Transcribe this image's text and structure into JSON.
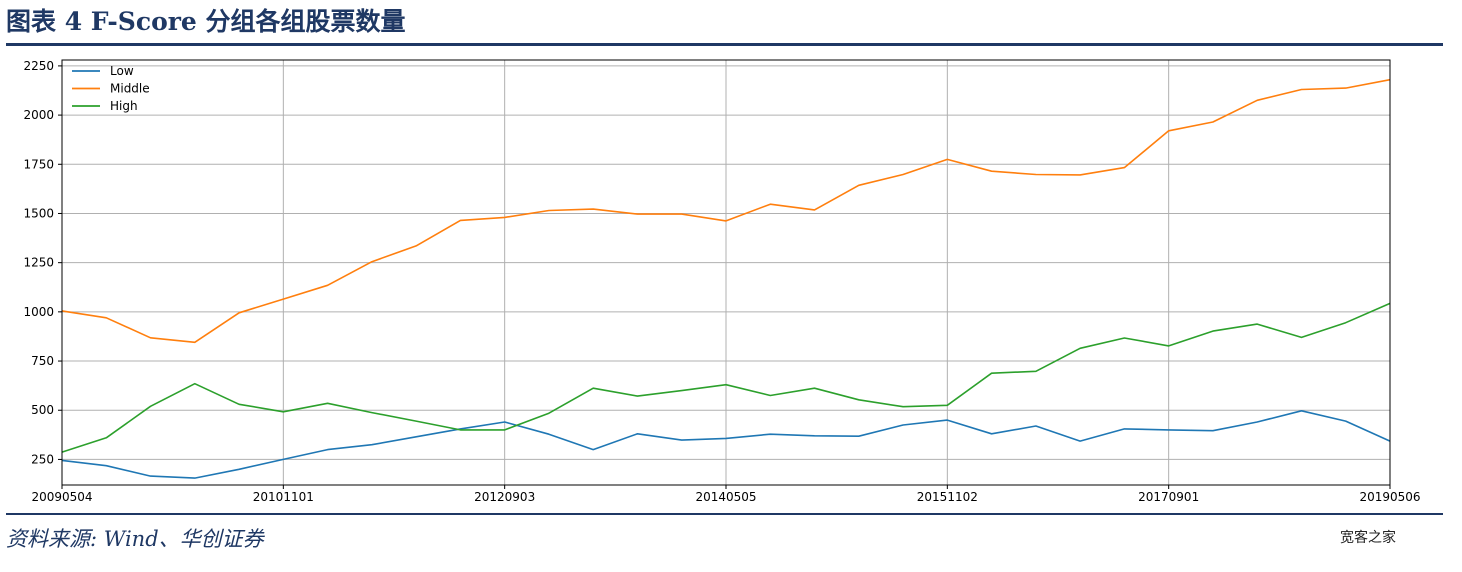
{
  "figure": {
    "title": "图表 4    F-Score 分组各组股票数量",
    "source": "资料来源: Wind、华创证券",
    "watermark": "宽客之家"
  },
  "chart_data": {
    "type": "line",
    "title": "",
    "xlabel": "",
    "ylabel": "",
    "ylim": [
      120,
      2280
    ],
    "yticks": [
      250,
      500,
      750,
      1000,
      1250,
      1500,
      1750,
      2000,
      2250
    ],
    "x_tick_labels": [
      "20090504",
      "20101101",
      "20120903",
      "20140505",
      "20151102",
      "20170901",
      "20190506"
    ],
    "x_tick_index": [
      0,
      5,
      10,
      15,
      20,
      25,
      30
    ],
    "grid": true,
    "legend_position": "top-left",
    "series": [
      {
        "name": "Low",
        "color": "#1f77b4",
        "values": [
          245,
          218,
          165,
          155,
          200,
          250,
          300,
          325,
          365,
          405,
          440,
          378,
          300,
          380,
          348,
          357,
          378,
          370,
          368,
          425,
          450,
          380,
          420,
          343,
          405,
          400,
          396,
          440,
          497,
          445,
          343
        ]
      },
      {
        "name": "Middle",
        "color": "#ff7f0e",
        "values": [
          1005,
          970,
          868,
          845,
          995,
          1065,
          1135,
          1255,
          1335,
          1465,
          1480,
          1515,
          1522,
          1497,
          1497,
          1462,
          1547,
          1518,
          1643,
          1698,
          1775,
          1715,
          1698,
          1696,
          1733,
          1920,
          1965,
          2075,
          2130,
          2137,
          2180
        ]
      },
      {
        "name": "High",
        "color": "#2ca02c",
        "values": [
          287,
          360,
          520,
          635,
          530,
          492,
          535,
          488,
          445,
          400,
          400,
          485,
          612,
          572,
          600,
          630,
          575,
          612,
          553,
          518,
          525,
          688,
          698,
          815,
          867,
          827,
          902,
          938,
          870,
          945,
          1043
        ]
      }
    ]
  }
}
